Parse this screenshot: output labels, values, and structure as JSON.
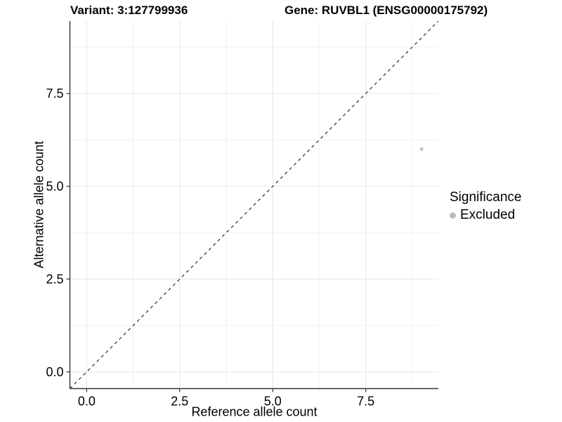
{
  "chart_data": {
    "type": "scatter",
    "title_left": "Variant: 3:127799936",
    "title_right": "Gene: RUVBL1 (ENSG00000175792)",
    "xlabel": "Reference allele count",
    "ylabel": "Alternative allele count",
    "xlim": [
      -0.45,
      9.45
    ],
    "ylim": [
      -0.45,
      9.45
    ],
    "x_ticks": [
      0,
      2.5,
      5,
      7.5
    ],
    "y_ticks": [
      0,
      2.5,
      5,
      7.5
    ],
    "x_tick_labels": [
      "0.0",
      "2.5",
      "5.0",
      "7.5"
    ],
    "y_tick_labels": [
      "0.0",
      "2.5",
      "5.0",
      "7.5"
    ],
    "minor_ticks": [
      1.25,
      3.75,
      6.25,
      8.75
    ],
    "grid": true,
    "reference_line": {
      "type": "abline",
      "slope": 1,
      "intercept": 0,
      "style": "dashed"
    },
    "series": [
      {
        "name": "Excluded",
        "color": "#bdbdbd",
        "points": [
          {
            "x": 9,
            "y": 6
          }
        ]
      }
    ],
    "legend": {
      "title": "Significance",
      "position": "right",
      "entries": [
        {
          "label": "Excluded",
          "color": "#bdbdbd"
        }
      ]
    }
  },
  "colors": {
    "background": "#ffffff",
    "text": "#000000",
    "axis": "#333333",
    "tick": "#333333",
    "grid_major": "#e6e6e6",
    "grid_minor": "#f2f2f2",
    "reference_line": "#1a1a1a",
    "point": "#bdbdbd"
  }
}
